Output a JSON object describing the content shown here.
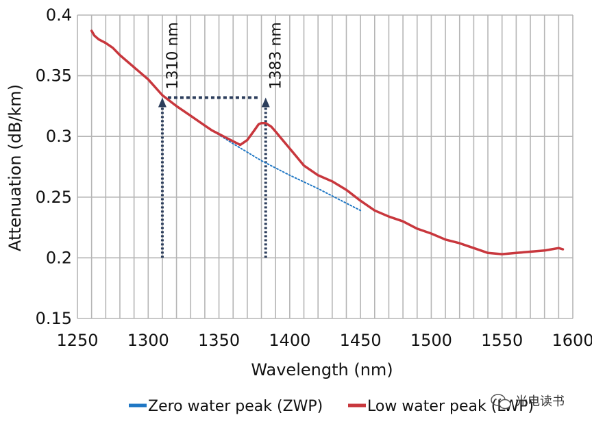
{
  "chart_data": {
    "type": "line",
    "title": "",
    "xlabel": "Wavelength (nm)",
    "ylabel": "Attenuation (dB/km)",
    "xlim": [
      1250,
      1600
    ],
    "ylim": [
      0.15,
      0.4
    ],
    "x_ticks": [
      1250,
      1300,
      1350,
      1400,
      1450,
      1500,
      1550,
      1600
    ],
    "x_tick_labels": [
      "1250",
      "1300",
      "1350",
      "1400",
      "1450",
      "1500",
      "1550",
      "1600"
    ],
    "y_ticks": [
      0.15,
      0.2,
      0.25,
      0.3,
      0.35,
      0.4
    ],
    "y_tick_labels": [
      "0.15",
      "0.2",
      "0.25",
      "0.3",
      "0.35",
      "0.4"
    ],
    "grid": true,
    "legend_position": "bottom",
    "series": [
      {
        "name": "Zero water peak (ZWP)",
        "color": "#1f77c4",
        "style": "dotted",
        "x": [
          1345,
          1360,
          1380,
          1400,
          1420,
          1440,
          1450
        ],
        "y": [
          0.305,
          0.294,
          0.28,
          0.268,
          0.257,
          0.245,
          0.239
        ]
      },
      {
        "name": "Low water peak (LWP)",
        "color": "#c8373d",
        "style": "solid",
        "x": [
          1260,
          1262,
          1265,
          1270,
          1275,
          1280,
          1290,
          1300,
          1310,
          1320,
          1330,
          1340,
          1345,
          1350,
          1355,
          1360,
          1365,
          1370,
          1375,
          1378,
          1380,
          1383,
          1387,
          1390,
          1395,
          1400,
          1405,
          1410,
          1420,
          1430,
          1440,
          1450,
          1460,
          1470,
          1480,
          1490,
          1500,
          1510,
          1520,
          1525,
          1530,
          1540,
          1550,
          1560,
          1570,
          1580,
          1585,
          1590,
          1593
        ],
        "y": [
          0.387,
          0.383,
          0.38,
          0.377,
          0.373,
          0.367,
          0.357,
          0.347,
          0.334,
          0.325,
          0.317,
          0.309,
          0.305,
          0.302,
          0.299,
          0.296,
          0.293,
          0.297,
          0.305,
          0.31,
          0.311,
          0.311,
          0.308,
          0.304,
          0.297,
          0.29,
          0.283,
          0.276,
          0.268,
          0.263,
          0.256,
          0.247,
          0.239,
          0.234,
          0.23,
          0.224,
          0.22,
          0.215,
          0.212,
          0.21,
          0.208,
          0.204,
          0.203,
          0.204,
          0.205,
          0.206,
          0.207,
          0.208,
          0.207
        ]
      }
    ],
    "annotations": [
      {
        "label": "1310 nm",
        "x": 1310,
        "y_base": 0.2,
        "y_top": 0.332
      },
      {
        "label": "1383 nm",
        "x": 1383,
        "y_base": 0.2,
        "y_top": 0.332
      }
    ],
    "bracket": {
      "x1": 1310,
      "x2": 1383,
      "y": 0.332,
      "color": "#2c3e5c"
    }
  },
  "watermark": {
    "text": "光电读书",
    "icon": "wechat-icon"
  }
}
